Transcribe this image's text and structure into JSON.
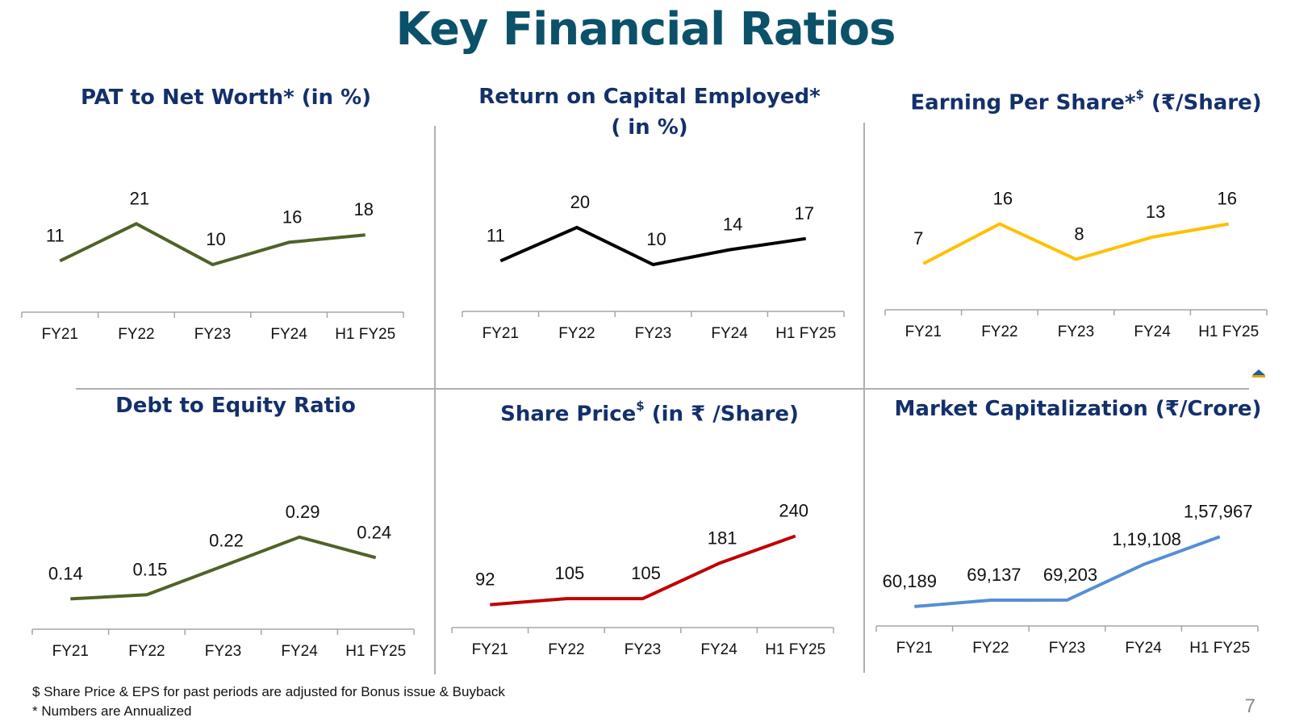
{
  "slide": {
    "title": "Key Financial Ratios",
    "page_number": "7",
    "footnotes": [
      "$ Share Price & EPS for past periods are adjusted for Bonus issue & Buyback",
      "* Numbers are Annualized"
    ]
  },
  "chart_data": [
    {
      "type": "line",
      "title": "PAT to Net Worth* (in %)",
      "categories": [
        "FY21",
        "FY22",
        "FY23",
        "FY24",
        "H1 FY25"
      ],
      "values": [
        11,
        21,
        10,
        16,
        18
      ],
      "labels": [
        "11",
        "21",
        "10",
        "16",
        "18"
      ],
      "color": "#4f6228",
      "ylim": [
        -10,
        40
      ]
    },
    {
      "type": "line",
      "title": "Return on Capital Employed* ( in %)",
      "categories": [
        "FY21",
        "FY22",
        "FY23",
        "FY24",
        "H1 FY25"
      ],
      "values": [
        11,
        20,
        10,
        14,
        17
      ],
      "labels": [
        "11",
        "20",
        "10",
        "14",
        "17"
      ],
      "color": "#000000",
      "ylim": [
        -10,
        40
      ]
    },
    {
      "type": "line",
      "title": "Earning Per Share*$ (₹/Share)",
      "categories": [
        "FY21",
        "FY22",
        "FY23",
        "FY24",
        "H1 FY25"
      ],
      "values": [
        7,
        16,
        8,
        13,
        16
      ],
      "labels": [
        "7",
        "16",
        "8",
        "13",
        "16"
      ],
      "color": "#ffc000",
      "ylim": [
        -10,
        32
      ]
    },
    {
      "type": "line",
      "title": "Debt to Equity Ratio",
      "categories": [
        "FY21",
        "FY22",
        "FY23",
        "FY24",
        "H1 FY25"
      ],
      "values": [
        0.14,
        0.15,
        0.22,
        0.29,
        0.24
      ],
      "labels": [
        "0.14",
        "0.15",
        "0.22",
        "0.29",
        "0.24"
      ],
      "color": "#4f6228",
      "ylim": [
        0.0,
        0.45
      ]
    },
    {
      "type": "line",
      "title": "Share Price$ (in ₹ /Share)",
      "categories": [
        "FY21",
        "FY22",
        "FY23",
        "FY24",
        "H1 FY25"
      ],
      "values": [
        92,
        105,
        105,
        181,
        240
      ],
      "labels": [
        "92",
        "105",
        "105",
        "181",
        "240"
      ],
      "color": "#c00000",
      "ylim": [
        -20,
        380
      ]
    },
    {
      "type": "line",
      "title": "Market Capitalization (₹/Crore)",
      "categories": [
        "FY21",
        "FY22",
        "FY23",
        "FY24",
        "H1 FY25"
      ],
      "values": [
        60189,
        69137,
        69203,
        119108,
        157967
      ],
      "labels": [
        "60,189",
        "69,137",
        "69,203",
        "1,19,108",
        "1,57,967"
      ],
      "color": "#558ed5",
      "ylim": [
        -10000,
        250000
      ]
    }
  ]
}
